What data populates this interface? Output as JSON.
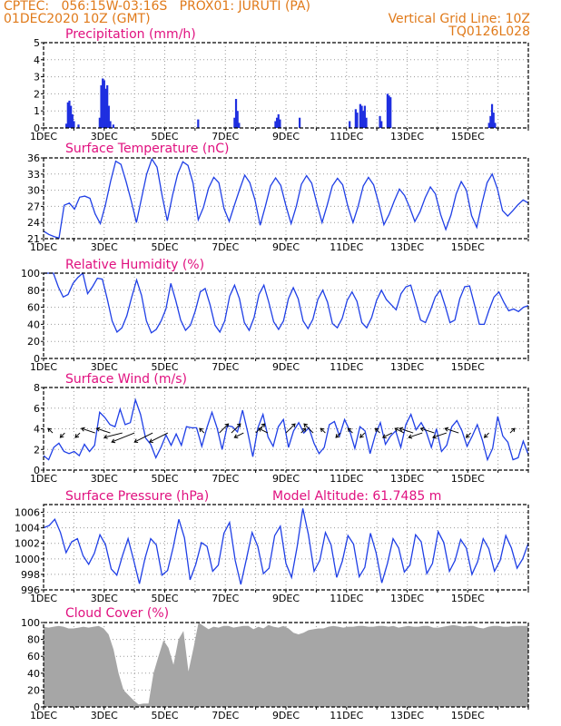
{
  "header": {
    "line1_left": "CPTEC:   056:15W-03:16S   PROX01: JURUTI (PA)",
    "line2_left": "01DEC2020 10Z (GMT)",
    "line2_right": "Vertical Grid Line: 10Z",
    "line3_right": "TQ0126L028"
  },
  "dates": [
    "1DEC",
    "3DEC",
    "5DEC",
    "7DEC",
    "9DEC",
    "11DEC",
    "13DEC",
    "15DEC"
  ],
  "colors": {
    "accent": "#e07a1a",
    "title": "#e0107f",
    "series": "#1f3fe6",
    "bars": "#1f2fe0",
    "cloud": "#a6a6a6"
  },
  "chart_data": [
    {
      "type": "bar",
      "title": "Precipitation (mm/h)",
      "ylim": [
        0,
        5
      ],
      "yticks": [
        0,
        1,
        2,
        3,
        4,
        5
      ],
      "x_unit": "day offset from 01DEC2020 10Z",
      "points": [
        [
          0.75,
          0.25
        ],
        [
          0.8,
          1.5
        ],
        [
          0.85,
          1.6
        ],
        [
          0.9,
          1.3
        ],
        [
          0.95,
          0.8
        ],
        [
          1.0,
          0.4
        ],
        [
          1.15,
          0.2
        ],
        [
          1.85,
          0.6
        ],
        [
          1.9,
          2.5
        ],
        [
          1.95,
          2.9
        ],
        [
          2.0,
          2.8
        ],
        [
          2.05,
          2.3
        ],
        [
          2.1,
          2.5
        ],
        [
          2.15,
          1.3
        ],
        [
          2.2,
          0.4
        ],
        [
          2.3,
          0.2
        ],
        [
          5.1,
          0.5
        ],
        [
          6.3,
          0.6
        ],
        [
          6.35,
          1.7
        ],
        [
          6.4,
          1.0
        ],
        [
          6.45,
          0.3
        ],
        [
          7.65,
          0.4
        ],
        [
          7.7,
          0.6
        ],
        [
          7.75,
          0.8
        ],
        [
          7.8,
          0.5
        ],
        [
          8.45,
          0.6
        ],
        [
          10.1,
          0.4
        ],
        [
          10.3,
          1.1
        ],
        [
          10.35,
          0.9
        ],
        [
          10.45,
          1.4
        ],
        [
          10.5,
          1.3
        ],
        [
          10.55,
          1.0
        ],
        [
          10.6,
          1.3
        ],
        [
          10.65,
          0.6
        ],
        [
          11.1,
          0.7
        ],
        [
          11.15,
          0.4
        ],
        [
          11.35,
          2.0
        ],
        [
          11.4,
          1.9
        ],
        [
          11.45,
          1.8
        ],
        [
          14.7,
          0.3
        ],
        [
          14.75,
          0.7
        ],
        [
          14.8,
          1.4
        ],
        [
          14.85,
          0.9
        ],
        [
          14.9,
          0.3
        ]
      ]
    },
    {
      "type": "line",
      "title": "Surface Temperature (nC)",
      "ylim": [
        21,
        36
      ],
      "yticks": [
        21,
        24,
        27,
        30,
        33,
        36
      ],
      "y": [
        22.4,
        21.8,
        21.4,
        21.1,
        27.2,
        27.6,
        26.5,
        28.7,
        28.9,
        28.5,
        25.6,
        23.8,
        27.3,
        31.7,
        35.4,
        34.8,
        31.6,
        28.0,
        24.0,
        28.5,
        33.0,
        35.8,
        34.3,
        28.9,
        24.3,
        29.0,
        33.0,
        35.3,
        34.6,
        31.3,
        24.5,
        26.8,
        30.4,
        32.4,
        31.4,
        26.6,
        24.2,
        27.2,
        30.1,
        32.8,
        31.4,
        28.2,
        23.5,
        27.0,
        30.8,
        32.3,
        30.9,
        27.1,
        23.8,
        27.0,
        31.1,
        32.7,
        31.3,
        27.5,
        24.0,
        27.2,
        30.8,
        32.2,
        31.0,
        27.0,
        24.0,
        27.0,
        30.8,
        32.4,
        31.0,
        27.5,
        23.6,
        25.5,
        28.0,
        30.2,
        29.0,
        26.8,
        24.2,
        26.0,
        28.6,
        30.6,
        29.3,
        25.5,
        22.7,
        25.4,
        29.3,
        31.6,
        30.0,
        25.3,
        23.1,
        27.5,
        31.4,
        33.0,
        30.3,
        26.2,
        25.2,
        26.2,
        27.3,
        28.2,
        27.6
      ]
    },
    {
      "type": "line",
      "title": "Relative Humidity (%)",
      "ylim": [
        0,
        100
      ],
      "yticks": [
        0,
        20,
        40,
        60,
        80,
        100
      ],
      "y": [
        100,
        100,
        100,
        84,
        72,
        75,
        88,
        95,
        100,
        76,
        84,
        94,
        93,
        70,
        44,
        31,
        36,
        50,
        72,
        92,
        74,
        44,
        30,
        34,
        44,
        58,
        88,
        68,
        45,
        33,
        39,
        56,
        78,
        82,
        63,
        39,
        31,
        44,
        73,
        86,
        70,
        42,
        33,
        48,
        75,
        86,
        66,
        43,
        34,
        44,
        70,
        83,
        70,
        44,
        35,
        46,
        69,
        80,
        66,
        41,
        36,
        47,
        68,
        78,
        67,
        42,
        36,
        48,
        68,
        80,
        69,
        63,
        57,
        76,
        84,
        86,
        66,
        45,
        42,
        56,
        72,
        80,
        62,
        42,
        45,
        70,
        84,
        85,
        63,
        40,
        40,
        57,
        72,
        78,
        66,
        56,
        58,
        55,
        60,
        62
      ]
    },
    {
      "type": "line",
      "title": "Surface Wind (m/s)",
      "ylim": [
        0,
        8
      ],
      "yticks": [
        0,
        2,
        4,
        6,
        8
      ],
      "y": [
        1.4,
        1.0,
        2.2,
        2.6,
        1.8,
        1.6,
        1.8,
        1.4,
        2.5,
        1.8,
        2.4,
        5.6,
        5.1,
        4.4,
        4.2,
        5.9,
        4.4,
        4.6,
        6.8,
        5.4,
        3.1,
        2.5,
        1.2,
        2.2,
        3.4,
        2.4,
        3.5,
        2.4,
        4.2,
        4.1,
        4.1,
        2.3,
        4.1,
        5.6,
        4.1,
        2.0,
        4.3,
        4.2,
        3.7,
        5.8,
        3.7,
        1.3,
        4.1,
        5.4,
        3.2,
        2.3,
        4.2,
        4.9,
        2.2,
        3.8,
        4.6,
        3.6,
        4.1,
        2.6,
        1.6,
        2.2,
        4.4,
        4.7,
        3.3,
        4.9,
        3.8,
        2.1,
        4.2,
        3.8,
        1.6,
        3.4,
        4.6,
        2.5,
        3.3,
        3.8,
        2.2,
        4.4,
        5.4,
        3.9,
        4.6,
        3.7,
        2.2,
        4.0,
        1.8,
        2.4,
        4.2,
        4.8,
        3.8,
        2.3,
        3.3,
        4.4,
        2.9,
        1.0,
        2.1,
        5.2,
        3.3,
        2.7,
        1.0,
        1.2,
        2.8,
        1.5
      ]
    },
    {
      "type": "line",
      "title": "Surface Pressure (hPa)",
      "annotation": "Model Altitude: 61.7485 m",
      "ylim": [
        996,
        1007
      ],
      "yticks": [
        996,
        998,
        1000,
        1002,
        1004,
        1006
      ],
      "y": [
        1004,
        1004.3,
        1005.1,
        1003.4,
        1000.8,
        1002.2,
        1002.6,
        1000.4,
        999.3,
        1000.7,
        1003.1,
        1001.8,
        998.7,
        997.9,
        1000.4,
        1002.6,
        999.8,
        996.8,
        1000.1,
        1002.6,
        1001.8,
        997.9,
        998.5,
        1001.5,
        1005.1,
        1002.7,
        997.3,
        999.3,
        1002.1,
        1001.6,
        998.4,
        999.2,
        1003.3,
        1004.7,
        999.8,
        996.7,
        1000.0,
        1003.4,
        1001.6,
        998.1,
        998.8,
        1003.0,
        1004.2,
        999.4,
        997.6,
        1001.6,
        1006.5,
        1003.1,
        998.4,
        999.8,
        1003.4,
        1001.8,
        997.6,
        999.7,
        1003.0,
        1001.9,
        997.7,
        998.9,
        1003.3,
        1000.8,
        996.9,
        999.4,
        1002.6,
        1001.4,
        998.3,
        999.2,
        1003.1,
        1002.2,
        998.1,
        999.4,
        1003.5,
        1002.1,
        998.4,
        999.8,
        1002.5,
        1001.4,
        998.0,
        999.6,
        1002.6,
        1001.3,
        998.4,
        999.8,
        1003.0,
        1001.4,
        998.8,
        1000.0,
        1002.0
      ]
    },
    {
      "type": "area",
      "title": "Cloud Cover (%)",
      "ylim": [
        0,
        100
      ],
      "yticks": [
        0,
        20,
        40,
        60,
        80,
        100
      ],
      "y": [
        95,
        94,
        95,
        96,
        95,
        93,
        93,
        94,
        95,
        94,
        95,
        96,
        93,
        86,
        68,
        40,
        20,
        14,
        8,
        3,
        4,
        4,
        40,
        60,
        79,
        70,
        50,
        80,
        90,
        42,
        70,
        100,
        96,
        92,
        95,
        94,
        96,
        96,
        94,
        95,
        96,
        96,
        92,
        95,
        93,
        97,
        95,
        94,
        96,
        93,
        88,
        86,
        88,
        91,
        92,
        93,
        93,
        95,
        96,
        95,
        94,
        95,
        95,
        96,
        96,
        95,
        95,
        96,
        96,
        95,
        96,
        94,
        95,
        96,
        95,
        95,
        96,
        96,
        94,
        94,
        95,
        96,
        97,
        96,
        95,
        96,
        96,
        94,
        93,
        95,
        96,
        96,
        95,
        95,
        96,
        96,
        96,
        96
      ]
    }
  ],
  "wind_vectors": [
    {
      "d": 0.3,
      "u": -1,
      "v": 1
    },
    {
      "d": 0.7,
      "u": -1,
      "v": -1
    },
    {
      "d": 1.2,
      "u": -1,
      "v": -1
    },
    {
      "d": 1.7,
      "u": -3,
      "v": 1
    },
    {
      "d": 2.2,
      "u": -3,
      "v": 1
    },
    {
      "d": 2.6,
      "u": -4,
      "v": -1
    },
    {
      "d": 3.0,
      "u": -5,
      "v": -2
    },
    {
      "d": 3.6,
      "u": -4,
      "v": -2
    },
    {
      "d": 4.1,
      "u": -4,
      "v": -2
    },
    {
      "d": 5.3,
      "u": -1,
      "v": 1
    },
    {
      "d": 5.8,
      "u": 2,
      "v": 2
    },
    {
      "d": 6.2,
      "u": 2,
      "v": 2
    },
    {
      "d": 6.6,
      "u": -2,
      "v": -1
    },
    {
      "d": 7.0,
      "u": 2,
      "v": 2
    },
    {
      "d": 7.4,
      "u": -2,
      "v": 1
    },
    {
      "d": 8.0,
      "u": 2,
      "v": 2
    },
    {
      "d": 8.5,
      "u": 1,
      "v": 1
    },
    {
      "d": 8.9,
      "u": -2,
      "v": 2
    },
    {
      "d": 9.3,
      "u": -1,
      "v": 1
    },
    {
      "d": 9.8,
      "u": -1,
      "v": -1
    },
    {
      "d": 10.2,
      "u": -1,
      "v": 1
    },
    {
      "d": 10.6,
      "u": -1,
      "v": -1
    },
    {
      "d": 11.1,
      "u": -1,
      "v": 1
    },
    {
      "d": 11.5,
      "u": -2,
      "v": -1
    },
    {
      "d": 11.9,
      "u": -2,
      "v": 1
    },
    {
      "d": 12.2,
      "u": -3,
      "v": 1
    },
    {
      "d": 12.5,
      "u": -3,
      "v": -1
    },
    {
      "d": 12.9,
      "u": -3,
      "v": 1
    },
    {
      "d": 13.3,
      "u": -3,
      "v": -1
    },
    {
      "d": 13.7,
      "u": -3,
      "v": 1
    },
    {
      "d": 14.1,
      "u": -1,
      "v": -1
    },
    {
      "d": 14.7,
      "u": -1,
      "v": -1
    },
    {
      "d": 15.4,
      "u": 1,
      "v": 1
    }
  ]
}
